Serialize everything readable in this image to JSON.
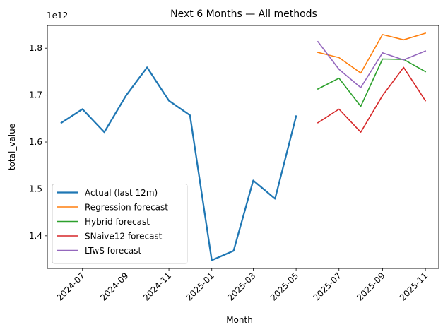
{
  "chart_data": {
    "type": "line",
    "title": "Next 6 Months — All methods",
    "xlabel": "Month",
    "ylabel": "total_value",
    "y_offset_label": "1e12",
    "x_range": [
      "2024-05-12",
      "2025-11-20"
    ],
    "ylim": [
      1.3305,
      1.8485
    ],
    "x_ticks": [
      "2024-07",
      "2024-09",
      "2024-11",
      "2025-01",
      "2025-03",
      "2025-05",
      "2025-07",
      "2025-09",
      "2025-11"
    ],
    "y_ticks": [
      1.4,
      1.5,
      1.6,
      1.7,
      1.8
    ],
    "legend_position": "lower left",
    "series": [
      {
        "name": "Actual (last 12m)",
        "color": "#1f77b4",
        "bold": true,
        "x": [
          "2024-06-01",
          "2024-07-01",
          "2024-08-01",
          "2024-09-01",
          "2024-10-01",
          "2024-11-01",
          "2024-12-01",
          "2025-01-01",
          "2025-02-01",
          "2025-03-01",
          "2025-04-01",
          "2025-05-01"
        ],
        "values": [
          1.641,
          1.67,
          1.621,
          1.699,
          1.759,
          1.688,
          1.657,
          1.348,
          1.368,
          1.518,
          1.479,
          1.655
        ]
      },
      {
        "name": "Regression forecast",
        "color": "#ff7f0e",
        "x": [
          "2025-06-01",
          "2025-07-01",
          "2025-08-01",
          "2025-09-01",
          "2025-10-01",
          "2025-11-01"
        ],
        "values": [
          1.791,
          1.78,
          1.747,
          1.829,
          1.818,
          1.832
        ]
      },
      {
        "name": "Hybrid forecast",
        "color": "#2ca02c",
        "x": [
          "2025-06-01",
          "2025-07-01",
          "2025-08-01",
          "2025-09-01",
          "2025-10-01",
          "2025-11-01"
        ],
        "values": [
          1.713,
          1.736,
          1.676,
          1.777,
          1.776,
          1.75
        ]
      },
      {
        "name": "SNaive12 forecast",
        "color": "#d62728",
        "x": [
          "2025-06-01",
          "2025-07-01",
          "2025-08-01",
          "2025-09-01",
          "2025-10-01",
          "2025-11-01"
        ],
        "values": [
          1.641,
          1.67,
          1.621,
          1.699,
          1.759,
          1.688
        ]
      },
      {
        "name": "LTwS forecast",
        "color": "#9467bd",
        "x": [
          "2025-06-01",
          "2025-07-01",
          "2025-08-01",
          "2025-09-01",
          "2025-10-01",
          "2025-11-01"
        ],
        "values": [
          1.814,
          1.755,
          1.716,
          1.79,
          1.775,
          1.794
        ]
      }
    ]
  }
}
